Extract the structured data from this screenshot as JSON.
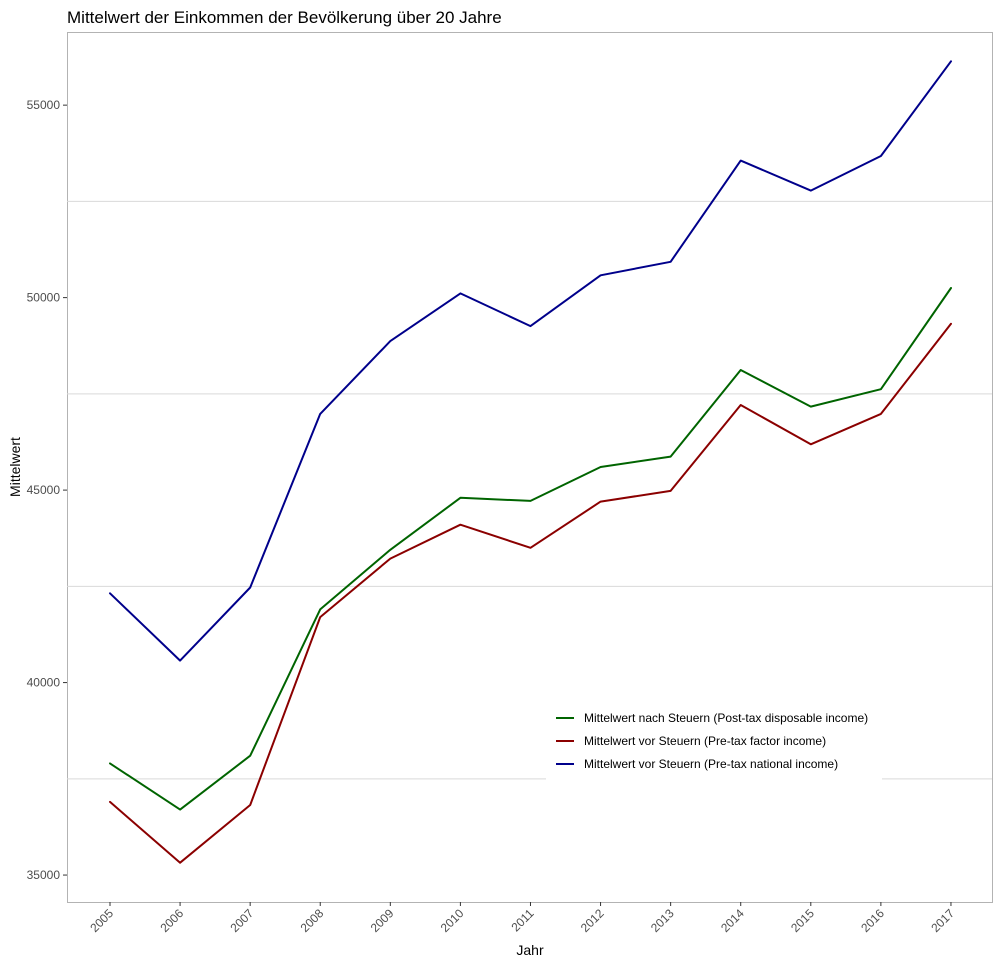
{
  "chart_data": {
    "type": "line",
    "title": "Mittelwert  der Einkommen der Bevölkerung über 20 Jahre",
    "xlabel": "Jahr",
    "ylabel": "Mittelwert",
    "x": [
      "2005",
      "2006",
      "2007",
      "2008",
      "2009",
      "2010",
      "2011",
      "2012",
      "2013",
      "2014",
      "2015",
      "2016",
      "2017"
    ],
    "yticks": [
      35000,
      40000,
      45000,
      50000,
      55000
    ],
    "ylim": [
      34300,
      56900
    ],
    "grid": "horizontal",
    "legend_position": "inside-bottom-right",
    "series": [
      {
        "name": "Mittelwert nach Steuern (Post-tax disposable income)",
        "color": "#006400",
        "values": [
          37900,
          36700,
          38100,
          41900,
          43450,
          44800,
          44720,
          45600,
          45870,
          48120,
          47170,
          47620,
          50250
        ]
      },
      {
        "name": "Mittelwert vor Steuern (Pre-tax factor income)",
        "color": "#8B0000",
        "values": [
          36900,
          35320,
          36820,
          41700,
          43220,
          44100,
          43500,
          44700,
          44980,
          47210,
          46190,
          46980,
          49320
        ]
      },
      {
        "name": "Mittelwert vor Steuern (Pre-tax national income)",
        "color": "#00008B",
        "values": [
          42320,
          40570,
          42470,
          46980,
          48870,
          50110,
          49260,
          50580,
          50930,
          53560,
          52780,
          53680,
          56140
        ]
      }
    ]
  }
}
